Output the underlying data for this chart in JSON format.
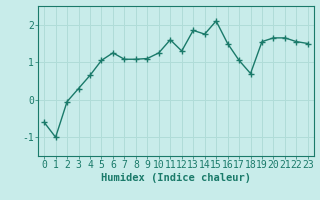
{
  "x": [
    0,
    1,
    2,
    3,
    4,
    5,
    6,
    7,
    8,
    9,
    10,
    11,
    12,
    13,
    14,
    15,
    16,
    17,
    18,
    19,
    20,
    21,
    22,
    23
  ],
  "y": [
    -0.6,
    -1.0,
    -0.05,
    0.3,
    0.65,
    1.05,
    1.25,
    1.08,
    1.08,
    1.1,
    1.25,
    1.6,
    1.3,
    1.85,
    1.75,
    2.1,
    1.5,
    1.05,
    0.7,
    1.55,
    1.65,
    1.65,
    1.55,
    1.5
  ],
  "line_color": "#1a7a6a",
  "marker": "+",
  "marker_size": 4,
  "bg_color": "#c8ecea",
  "grid_color": "#b0dcd8",
  "axis_color": "#1a7a6a",
  "xlabel": "Humidex (Indice chaleur)",
  "xlim": [
    -0.5,
    23.5
  ],
  "ylim": [
    -1.5,
    2.5
  ],
  "yticks": [
    -1,
    0,
    1,
    2
  ],
  "xticks": [
    0,
    1,
    2,
    3,
    4,
    5,
    6,
    7,
    8,
    9,
    10,
    11,
    12,
    13,
    14,
    15,
    16,
    17,
    18,
    19,
    20,
    21,
    22,
    23
  ],
  "xlabel_fontsize": 7.5,
  "tick_fontsize": 7,
  "line_width": 1.0,
  "marker_size_val": 4.5,
  "markeredgewidth": 1.0
}
